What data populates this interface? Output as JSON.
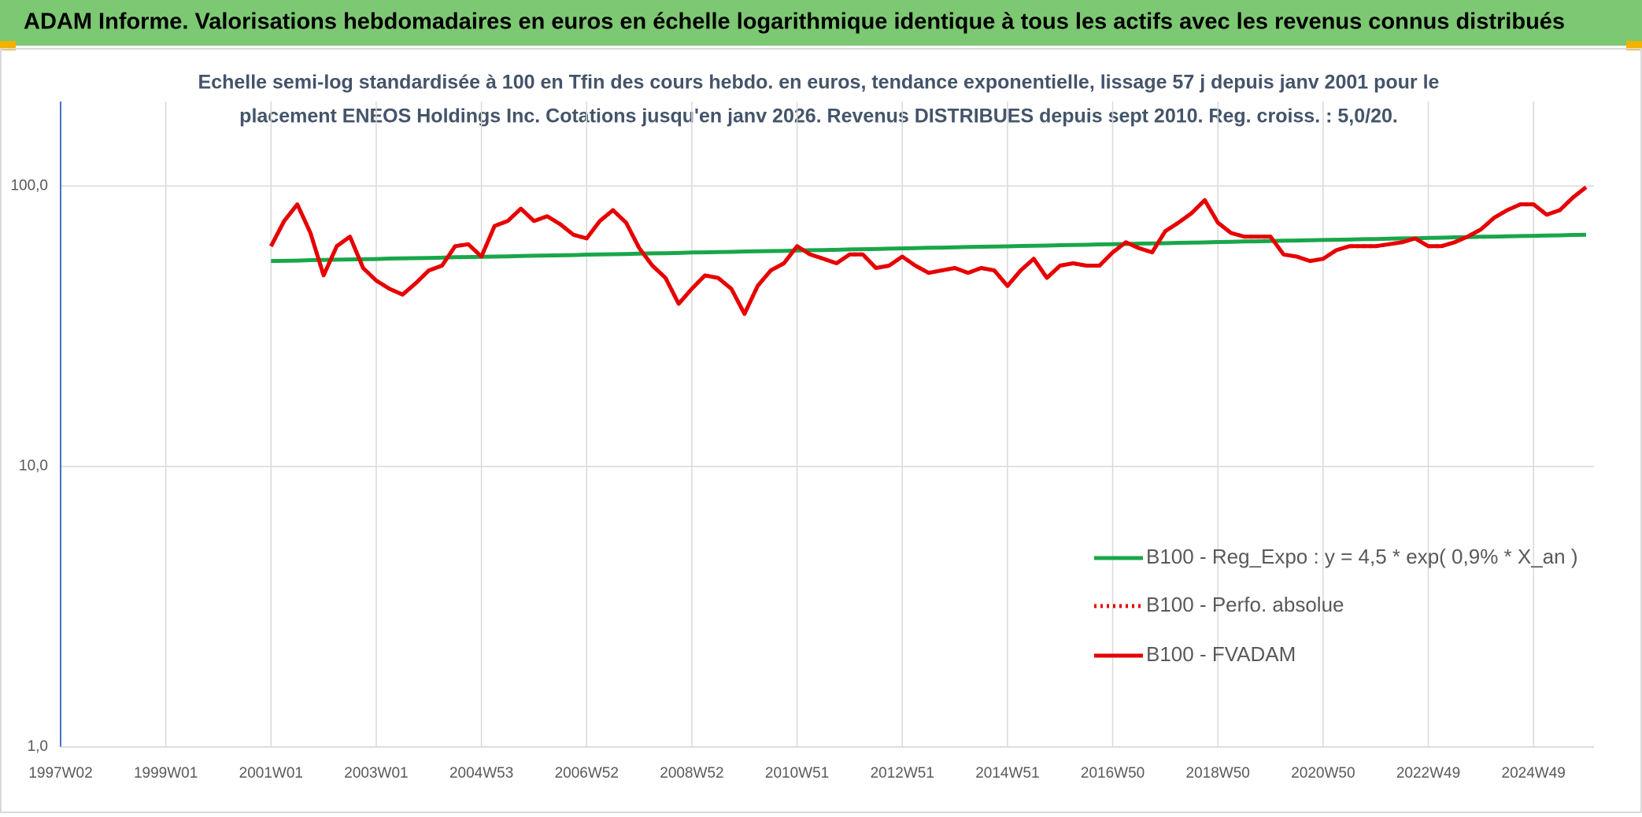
{
  "chart_data": {
    "type": "line",
    "title": "ADAM Informe. Valorisations hebdomadaires en euros en échelle logarithmique identique à tous les actifs avec les revenus connus distribués",
    "subtitle": [
      "Echelle semi-log standardisée à 100 en Tfin des cours hebdo. en euros, tendance exponentielle, lissage 57 j depuis janv 2001 pour le",
      "placement ENEOS Holdings Inc. Cotations jusqu'en janv 2026. Revenus DISTRIBUES depuis sept 2010. Reg. croiss. : 5,0/20."
    ],
    "categories": [
      "1997W02",
      null,
      null,
      null,
      null,
      null,
      null,
      null,
      "1999W01",
      null,
      null,
      null,
      null,
      null,
      null,
      null,
      "2001W01",
      null,
      null,
      null,
      null,
      null,
      null,
      null,
      "2003W01",
      null,
      null,
      null,
      null,
      null,
      null,
      null,
      "2004W53",
      null,
      null,
      null,
      null,
      null,
      null,
      null,
      "2006W52",
      null,
      null,
      null,
      null,
      null,
      null,
      null,
      "2008W52",
      null,
      null,
      null,
      null,
      null,
      null,
      null,
      "2010W51",
      null,
      null,
      null,
      null,
      null,
      null,
      null,
      "2012W51",
      null,
      null,
      null,
      null,
      null,
      null,
      null,
      "2014W51",
      null,
      null,
      null,
      null,
      null,
      null,
      null,
      "2016W50",
      null,
      null,
      null,
      null,
      null,
      null,
      null,
      "2018W50",
      null,
      null,
      null,
      null,
      null,
      null,
      null,
      "2020W50",
      null,
      null,
      null,
      null,
      null,
      null,
      null,
      "2022W49",
      null,
      null,
      null,
      null,
      null,
      null,
      null,
      "2024W49",
      null,
      null,
      null,
      null
    ],
    "log_y": true,
    "ylim": [
      1,
      200
    ],
    "yticks": [
      {
        "value": 1,
        "label": "1,0"
      },
      {
        "value": 10,
        "label": "10,0"
      },
      {
        "value": 100,
        "label": "100,0"
      }
    ],
    "grid": true,
    "legend": "lower right",
    "series": [
      {
        "name": "B100 - Reg_Expo : y = 4,5 * exp( 0,9% *  X_an )",
        "color": "#19a64a",
        "style": "solid",
        "values": [
          null,
          null,
          null,
          null,
          null,
          null,
          null,
          null,
          null,
          null,
          null,
          null,
          null,
          null,
          null,
          null,
          54.0,
          54.1,
          54.2,
          54.4,
          54.5,
          54.6,
          54.7,
          54.8,
          54.9,
          55.1,
          55.2,
          55.3,
          55.4,
          55.5,
          55.7,
          55.8,
          55.9,
          56.0,
          56.1,
          56.3,
          56.4,
          56.5,
          56.6,
          56.7,
          56.9,
          57.0,
          57.1,
          57.2,
          57.4,
          57.5,
          57.6,
          57.7,
          57.9,
          58.0,
          58.1,
          58.2,
          58.4,
          58.5,
          58.6,
          58.7,
          58.9,
          59.0,
          59.1,
          59.2,
          59.4,
          59.5,
          59.6,
          59.8,
          59.9,
          60.0,
          60.2,
          60.3,
          60.4,
          60.6,
          60.7,
          60.8,
          60.9,
          61.1,
          61.2,
          61.3,
          61.5,
          61.6,
          61.7,
          61.9,
          62.0,
          62.1,
          62.3,
          62.4,
          62.5,
          62.7,
          62.8,
          62.9,
          63.1,
          63.2,
          63.4,
          63.5,
          63.6,
          63.8,
          63.9,
          64.0,
          64.2,
          64.3,
          64.4,
          64.6,
          64.7,
          64.9,
          65.0,
          65.1,
          65.3,
          65.4,
          65.6,
          65.7,
          65.9,
          66.0,
          66.1,
          66.3,
          66.4,
          66.6,
          66.7,
          66.9,
          67.0
        ]
      },
      {
        "name": "B100 - Perfo. absolue",
        "color": "#e60000",
        "style": "dotted",
        "values": [
          null,
          null,
          null,
          null,
          null,
          null,
          null,
          null,
          null,
          null,
          null,
          null,
          null,
          null,
          null,
          null,
          61,
          75,
          86,
          68,
          48,
          61,
          66,
          51,
          46,
          43,
          41,
          45,
          50,
          52,
          61,
          62,
          56,
          72,
          75,
          83,
          75,
          78,
          73,
          67,
          65,
          75,
          82,
          74,
          60,
          52,
          47,
          38,
          43,
          48,
          47,
          43,
          35,
          44,
          50,
          53,
          61,
          57,
          55,
          53,
          57,
          57,
          51,
          52,
          56,
          52,
          49,
          50,
          51,
          49,
          51,
          50,
          44,
          50,
          55,
          47,
          52,
          53,
          52,
          52,
          58,
          63,
          60,
          58,
          69,
          74,
          80,
          89,
          74,
          68,
          66,
          66,
          66,
          57,
          56,
          54,
          55,
          59,
          61,
          61,
          61,
          62,
          63,
          65,
          61,
          61,
          63,
          66,
          70,
          77,
          82,
          86,
          86,
          79,
          82,
          91,
          99
        ]
      },
      {
        "name": "B100 - FVADAM",
        "color": "#e60000",
        "style": "solid",
        "values": [
          null,
          null,
          null,
          null,
          null,
          null,
          null,
          null,
          null,
          null,
          null,
          null,
          null,
          null,
          null,
          null,
          61,
          75,
          86,
          68,
          48,
          61,
          66,
          51,
          46,
          43,
          41,
          45,
          50,
          52,
          61,
          62,
          56,
          72,
          75,
          83,
          75,
          78,
          73,
          67,
          65,
          75,
          82,
          74,
          60,
          52,
          47,
          38,
          43,
          48,
          47,
          43,
          35,
          44,
          50,
          53,
          61,
          57,
          55,
          53,
          57,
          57,
          51,
          52,
          56,
          52,
          49,
          50,
          51,
          49,
          51,
          50,
          44,
          50,
          55,
          47,
          52,
          53,
          52,
          52,
          58,
          63,
          60,
          58,
          69,
          74,
          80,
          89,
          74,
          68,
          66,
          66,
          66,
          57,
          56,
          54,
          55,
          59,
          61,
          61,
          61,
          62,
          63,
          65,
          61,
          61,
          63,
          66,
          70,
          77,
          82,
          86,
          86,
          79,
          82,
          91,
          99
        ]
      }
    ]
  }
}
